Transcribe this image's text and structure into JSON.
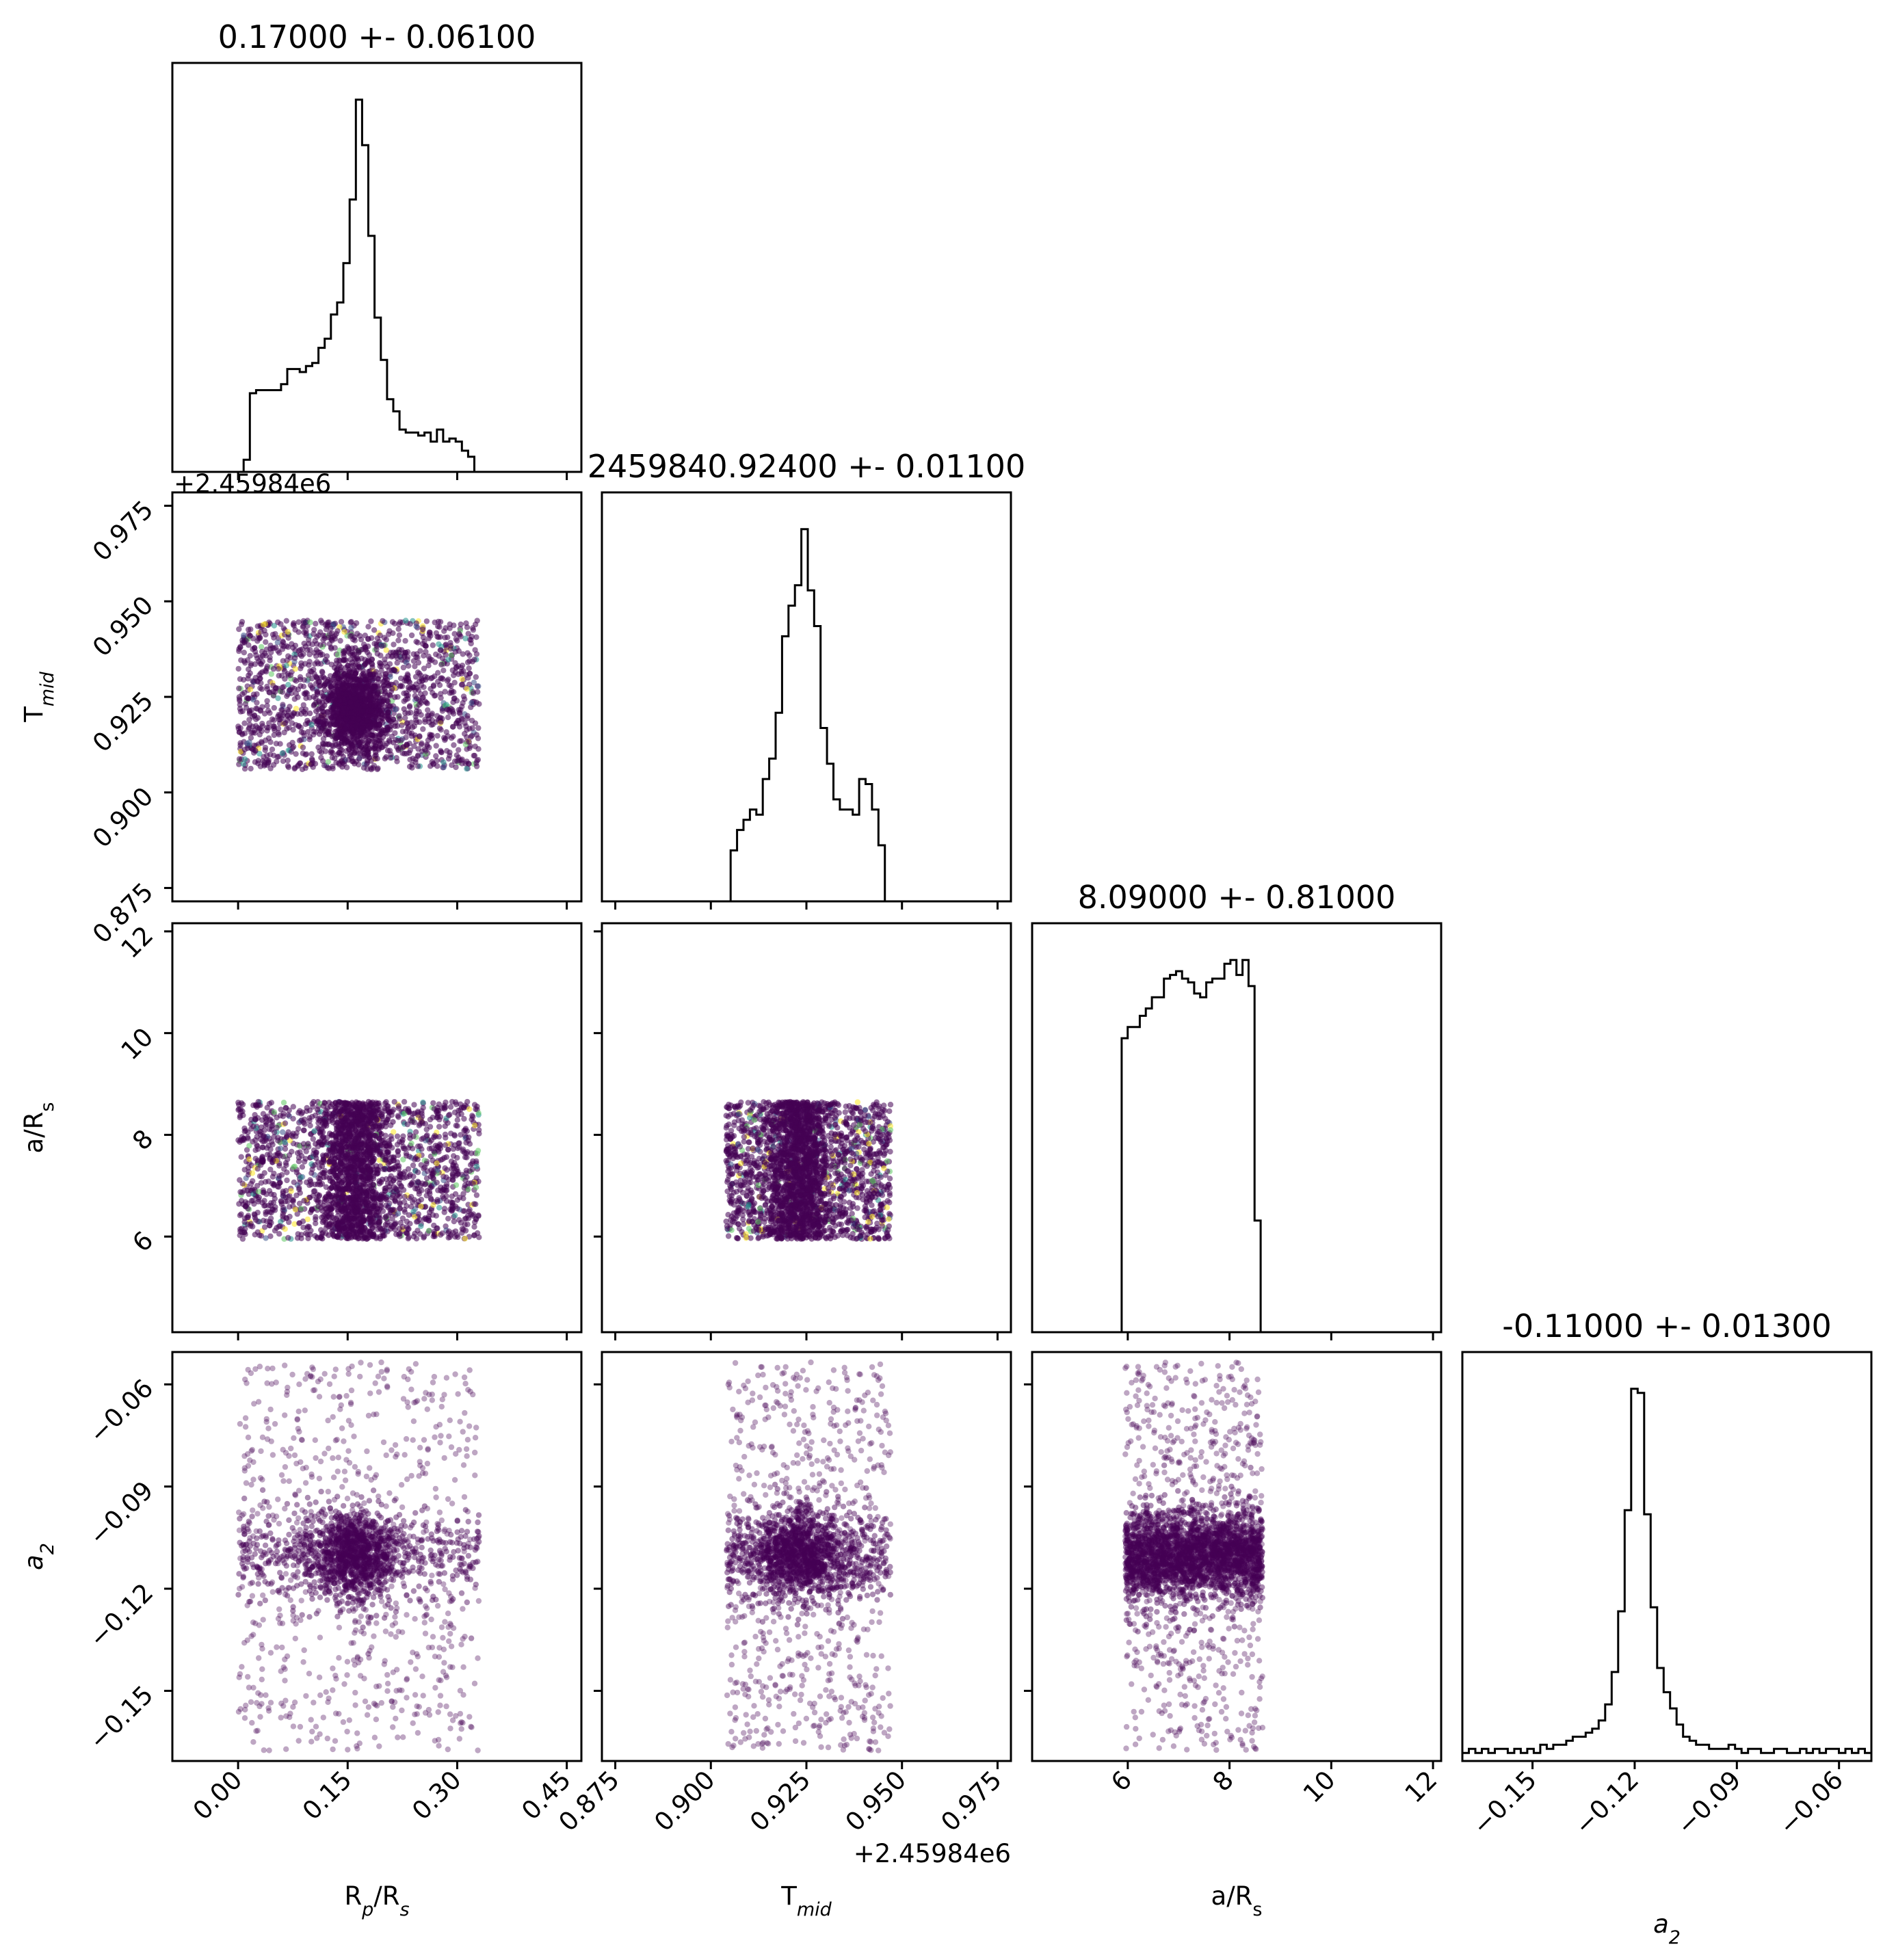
{
  "chart_data": {
    "type": "corner",
    "parameters": [
      {
        "key": "rp",
        "label": "Rₚ/Rₛ",
        "label_main": "R",
        "label_sub": "p",
        "label_mid": "/R",
        "label_sub2": "s",
        "range": [
          -0.09,
          0.47
        ],
        "ticks": [
          0.0,
          0.15,
          0.3,
          0.45
        ],
        "tick_labels": [
          "0.00",
          "0.15",
          "0.30",
          "0.45"
        ]
      },
      {
        "key": "tmid",
        "label": "T_mid",
        "label_main": "T",
        "label_sub": "mid",
        "range": [
          0.8715,
          0.9785
        ],
        "ticks": [
          0.875,
          0.9,
          0.925,
          0.95,
          0.975
        ],
        "tick_labels": [
          "0.875",
          "0.900",
          "0.925",
          "0.950",
          "0.975"
        ],
        "offset_text": "+2.45984e6"
      },
      {
        "key": "ars",
        "label": "a/Rₛ",
        "label_main": "a/R",
        "label_sub": "s",
        "range": [
          4.12,
          12.16
        ],
        "ticks": [
          6,
          8,
          10,
          12
        ],
        "tick_labels": [
          "6",
          "8",
          "10",
          "12"
        ]
      },
      {
        "key": "a2",
        "label": "a₂",
        "label_main": "a",
        "label_sub": "2",
        "range": [
          -0.1706,
          -0.0505
        ],
        "ticks": [
          -0.15,
          -0.12,
          -0.09,
          -0.06
        ],
        "tick_labels": [
          "−0.15",
          "−0.12",
          "−0.09",
          "−0.06"
        ]
      }
    ],
    "titles": [
      "0.17000 +- 0.06100",
      "2459840.92400 +- 0.01100",
      "8.09000 +- 0.81000",
      "-0.11000 +- 0.01300"
    ],
    "histograms": [
      {
        "param": "rp",
        "bin_edges_range": [
          -0.001,
          0.332
        ],
        "counts": [
          0,
          4,
          26,
          27,
          27,
          27,
          27,
          29,
          34,
          34,
          33,
          35,
          36,
          41,
          44,
          52,
          56,
          69,
          90,
          123,
          108,
          78,
          51,
          37,
          24,
          20,
          14,
          13,
          13,
          12,
          13,
          10,
          14,
          10,
          11,
          10,
          7,
          5,
          0
        ]
      },
      {
        "param": "tmid",
        "bin_edges_range": [
          0.9035,
          0.9472
        ],
        "counts": [
          0,
          10,
          14,
          16,
          18,
          17,
          24,
          28,
          37,
          52,
          58,
          62,
          73,
          61,
          54,
          34,
          27,
          20,
          18,
          18,
          17,
          24,
          23,
          18,
          11,
          0
        ]
      },
      {
        "param": "ars",
        "bin_edges_range": [
          5.88,
          8.73
        ],
        "counts": [
          79,
          82,
          82,
          85,
          87,
          90,
          90,
          95,
          96,
          97,
          95,
          94,
          91,
          90,
          94,
          95,
          95,
          99,
          100,
          96,
          100,
          93,
          30,
          0
        ]
      },
      {
        "param": "a2",
        "bin_edges_range": [
          -0.1706,
          -0.0505
        ],
        "counts": [
          2,
          3,
          2,
          3,
          2,
          3,
          3,
          2,
          3,
          2,
          3,
          2,
          4,
          3,
          4,
          4,
          5,
          6,
          6,
          7,
          8,
          10,
          14,
          22,
          37,
          62,
          92,
          91,
          61,
          38,
          23,
          17,
          13,
          9,
          6,
          5,
          4,
          4,
          3,
          3,
          3,
          4,
          3,
          2,
          3,
          3,
          2,
          2,
          3,
          3,
          2,
          2,
          3,
          2,
          3,
          2,
          3,
          3,
          2,
          3,
          2,
          3,
          2
        ]
      }
    ],
    "scatter_panels": [
      {
        "x": "rp",
        "y": "tmid",
        "x_range": [
          0.0,
          0.33
        ],
        "y_range": [
          0.906,
          0.945
        ],
        "density_center": [
          0.16,
          0.922
        ]
      },
      {
        "x": "rp",
        "y": "ars",
        "x_range": [
          0.0,
          0.33
        ],
        "y_range": [
          5.95,
          8.65
        ],
        "density_center": [
          0.16,
          7.3
        ]
      },
      {
        "x": "tmid",
        "y": "ars",
        "x_range": [
          0.904,
          0.947
        ],
        "y_range": [
          5.95,
          8.65
        ],
        "density_center": [
          0.923,
          7.3
        ]
      },
      {
        "x": "rp",
        "y": "a2",
        "x_range": [
          0.0,
          0.33
        ],
        "y_range": [
          -0.1706,
          -0.0505
        ],
        "density_center": [
          0.16,
          -0.11
        ]
      },
      {
        "x": "tmid",
        "y": "a2",
        "x_range": [
          0.904,
          0.947
        ],
        "y_range": [
          -0.1706,
          -0.0505
        ],
        "density_center": [
          0.923,
          -0.11
        ]
      },
      {
        "x": "ars",
        "y": "a2",
        "x_range": [
          5.95,
          8.65
        ],
        "y_range": [
          -0.1706,
          -0.0505
        ],
        "density_center": [
          7.3,
          -0.11
        ]
      }
    ],
    "point_colormap": "viridis",
    "colors": {
      "hist_line": "#000000",
      "dense": "#440154",
      "accent_1": "#3b528b",
      "accent_2": "#21918c",
      "accent_3": "#5ec962",
      "accent_4": "#fde725"
    },
    "grid": false
  }
}
